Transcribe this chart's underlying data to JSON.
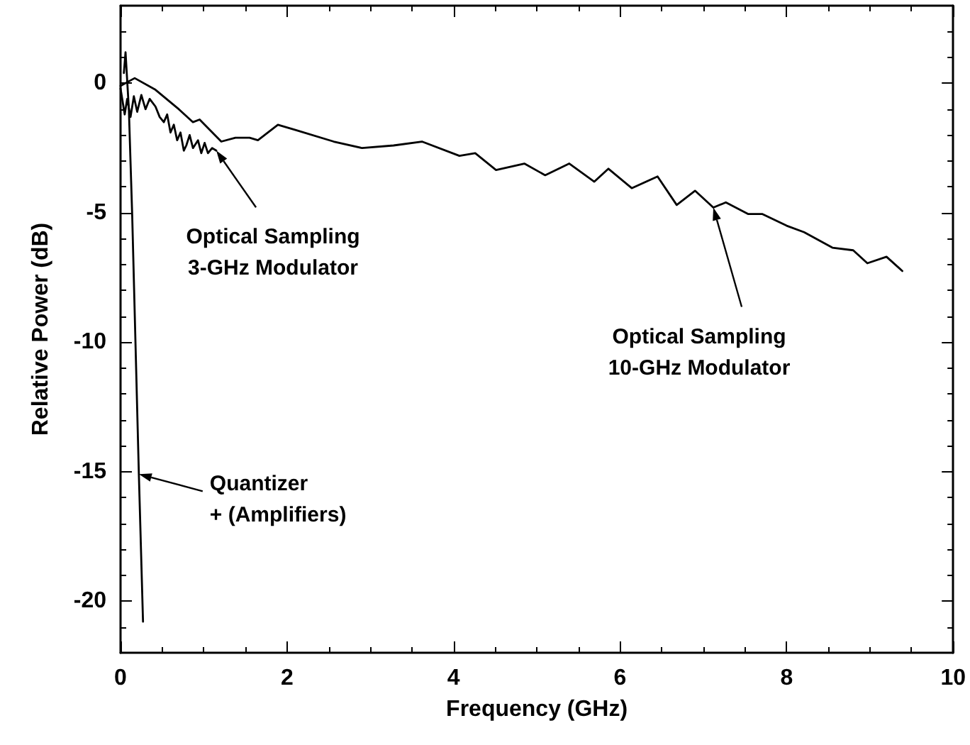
{
  "chart_data": {
    "type": "line",
    "xlabel": "Frequency (GHz)",
    "ylabel": "Relative Power (dB)",
    "xlim": [
      0,
      10
    ],
    "ylim": [
      -22,
      3
    ],
    "xticks": [
      0,
      2,
      4,
      6,
      8,
      10
    ],
    "yticks": [
      -20,
      -15,
      -10,
      -5,
      0
    ],
    "marker": "none",
    "line_style": "solid",
    "series": [
      {
        "color": "#000000",
        "x": [
          0,
          0.17,
          0.42,
          0.7,
          0.87,
          0.95,
          1.21,
          1.38,
          1.55,
          1.65,
          1.89,
          2.1,
          2.56,
          2.9,
          3.28,
          3.62,
          4.07,
          4.26,
          4.51,
          4.85,
          5.1,
          5.39,
          5.69,
          5.86,
          6.14,
          6.45,
          6.68,
          6.9,
          7.12,
          7.27,
          7.54,
          7.71,
          8.0,
          8.21,
          8.55,
          8.8,
          8.97,
          9.2,
          9.39
        ],
        "values": [
          -0.1,
          0.2,
          -0.25,
          -1.0,
          -1.5,
          -1.4,
          -2.25,
          -2.1,
          -2.1,
          -2.2,
          -1.6,
          -1.8,
          -2.25,
          -2.5,
          -2.4,
          -2.25,
          -2.8,
          -2.7,
          -3.35,
          -3.1,
          -3.55,
          -3.1,
          -3.8,
          -3.3,
          -4.05,
          -3.6,
          -4.7,
          -4.15,
          -4.8,
          -4.6,
          -5.05,
          -5.05,
          -5.5,
          -5.75,
          -6.35,
          -6.45,
          -6.95,
          -6.7,
          -7.25
        ]
      },
      {
        "color": "#000000",
        "x": [
          0,
          0.05,
          0.08,
          0.12,
          0.16,
          0.2,
          0.25,
          0.3,
          0.35,
          0.42,
          0.47,
          0.52,
          0.56,
          0.6,
          0.64,
          0.68,
          0.72,
          0.76,
          0.79,
          0.83,
          0.87,
          0.93,
          0.97,
          1.01,
          1.05,
          1.1,
          1.15
        ],
        "values": [
          -0.2,
          -1.2,
          -0.6,
          -1.3,
          -0.5,
          -1.1,
          -0.45,
          -1.0,
          -0.6,
          -0.9,
          -1.3,
          -1.5,
          -1.2,
          -1.9,
          -1.6,
          -2.2,
          -1.9,
          -2.6,
          -2.4,
          -2.0,
          -2.5,
          -2.2,
          -2.7,
          -2.3,
          -2.7,
          -2.5,
          -2.6
        ]
      },
      {
        "color": "#000000",
        "x": [
          0.04,
          0.06,
          0.1,
          0.14,
          0.22,
          0.27
        ],
        "values": [
          0.4,
          1.2,
          -1.0,
          -5.1,
          -15.1,
          -20.8
        ]
      }
    ],
    "annotations": [
      {
        "text": "Optical Sampling\n3-GHz Modulator",
        "x": 1.15,
        "y": -2.6
      },
      {
        "text": "Optical Sampling\n10-GHz Modulator",
        "x": 7.12,
        "y": -4.8
      },
      {
        "text": "Quantizer\n+ (Amplifiers)",
        "x": 0.22,
        "y": -15.1
      }
    ]
  }
}
